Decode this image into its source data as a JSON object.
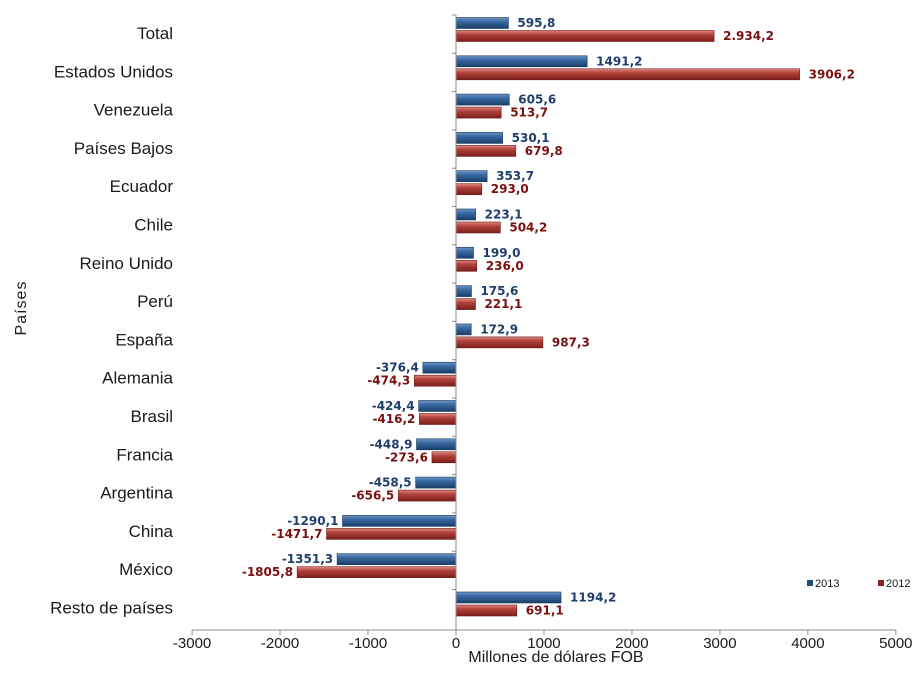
{
  "chart_data": {
    "type": "bar",
    "orientation": "horizontal",
    "categories": [
      "Total",
      "Estados Unidos",
      "Venezuela",
      "Países Bajos",
      "Ecuador",
      "Chile",
      "Reino Unido",
      "Perú",
      "España",
      "Alemania",
      "Brasil",
      "Francia",
      "Argentina",
      "China",
      "México",
      "Resto de países"
    ],
    "series": [
      {
        "name": "2013",
        "color": "#1f4e79",
        "values": [
          595.8,
          1491.2,
          605.6,
          530.1,
          353.7,
          223.1,
          199.0,
          175.6,
          172.9,
          -376.4,
          -424.4,
          -448.9,
          -458.5,
          -1290.1,
          -1351.3,
          1194.2
        ],
        "labels": [
          "595,8",
          "1491,2",
          "605,6",
          "530,1",
          "353,7",
          "223,1",
          "199,0",
          "175,6",
          "172,9",
          "-376,4",
          "-424,4",
          "-448,9",
          "-458,5",
          "-1290,1",
          "-1351,3",
          "1194,2"
        ]
      },
      {
        "name": "2012",
        "color": "#8b2323",
        "values": [
          2934.2,
          3906.2,
          513.7,
          679.8,
          293.0,
          504.2,
          236.0,
          221.1,
          987.3,
          -474.3,
          -416.2,
          -273.6,
          -656.5,
          -1471.7,
          -1805.8,
          691.1
        ],
        "labels": [
          "2.934,2",
          "3906,2",
          "513,7",
          "679,8",
          "293,0",
          "504,2",
          "236,0",
          "221,1",
          "987,3",
          "-474,3",
          "-416,2",
          "-273,6",
          "-656,5",
          "-1471,7",
          "-1805,8",
          "691,1"
        ]
      }
    ],
    "xlabel": "Millones de dólares FOB",
    "ylabel": "Países",
    "xlim": [
      -3000,
      5000
    ],
    "xticks": [
      -3000,
      -2000,
      -1000,
      0,
      1000,
      2000,
      3000,
      4000,
      5000
    ],
    "xtick_labels": [
      "-3000",
      "-2000",
      "-1000",
      "0",
      "1000",
      "2000",
      "3000",
      "4000",
      "5000"
    ],
    "legend_position": "bottom-right",
    "grid": false
  }
}
